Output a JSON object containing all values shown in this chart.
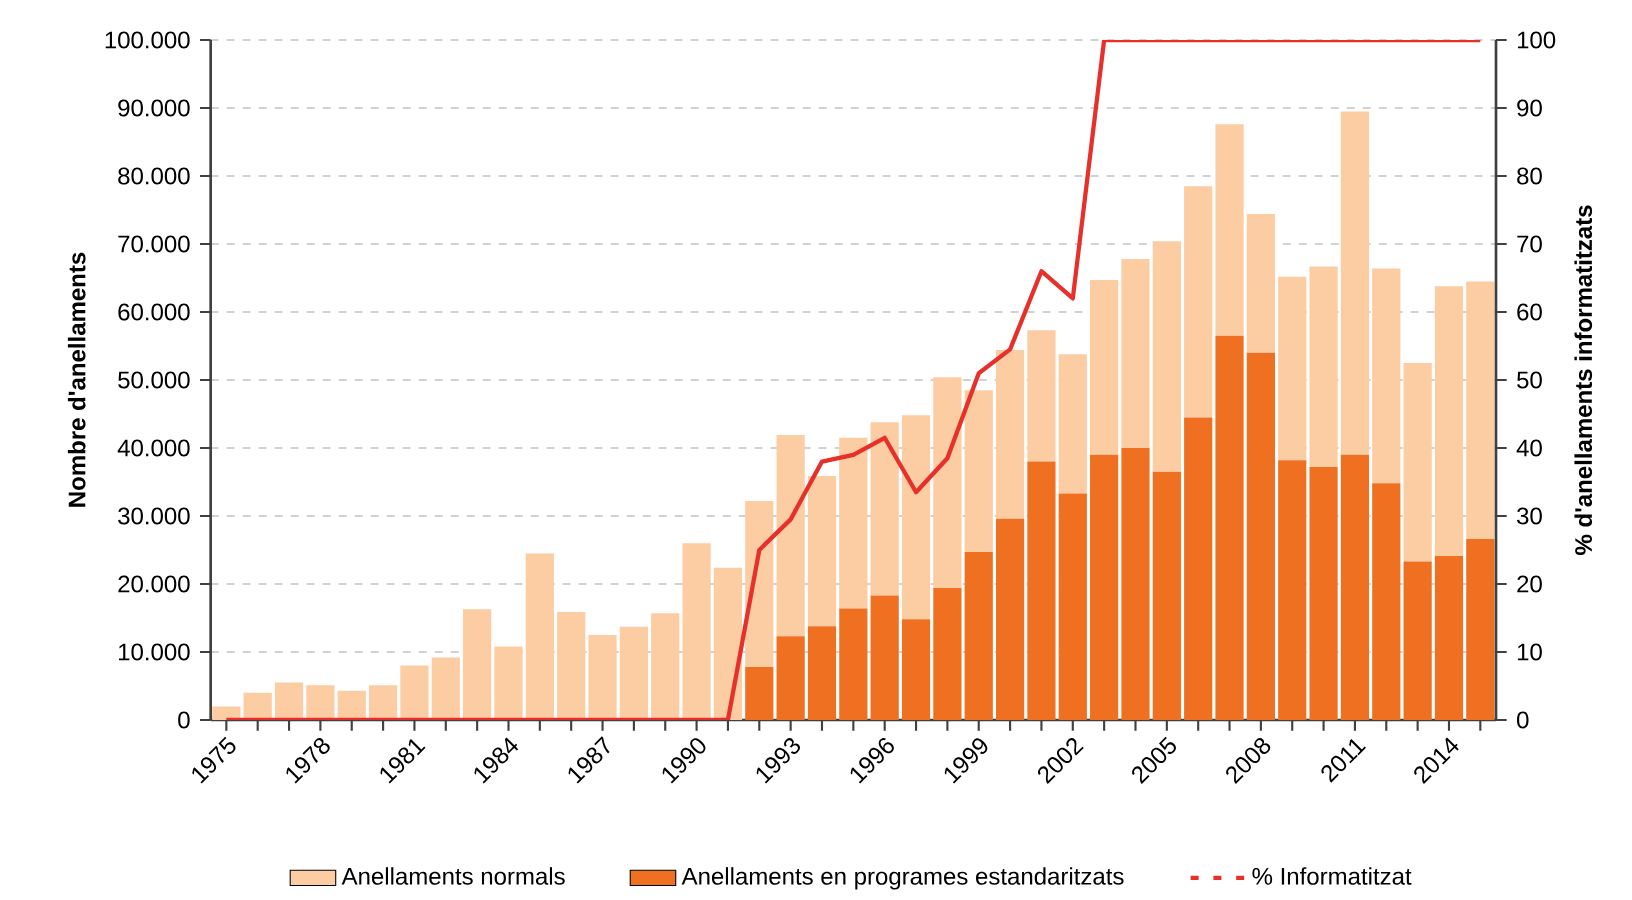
{
  "chart_data": {
    "type": "bar",
    "stacked": true,
    "ylabel": "Nombre d'anellaments",
    "y2label": "% d'anellaments informatitzats",
    "grid": "y",
    "legend": "bottom",
    "categories": [
      "1975",
      null,
      null,
      "1978",
      null,
      null,
      "1981",
      null,
      null,
      "1984",
      null,
      null,
      "1987",
      null,
      null,
      "1990",
      null,
      null,
      "1993",
      null,
      null,
      "1996",
      null,
      null,
      "1999",
      null,
      null,
      "2002",
      null,
      null,
      "2005",
      null,
      null,
      "2008",
      null,
      null,
      "2011",
      null,
      null,
      "2014",
      null
    ],
    "ylim": [
      0,
      100000
    ],
    "yticks": [
      {
        "value": 0,
        "label": "0"
      },
      {
        "value": 10000,
        "label": "10.000"
      },
      {
        "value": 20000,
        "label": "20.000"
      },
      {
        "value": 30000,
        "label": "30.000"
      },
      {
        "value": 40000,
        "label": "40.000"
      },
      {
        "value": 50000,
        "label": "50.000"
      },
      {
        "value": 60000,
        "label": "60.000"
      },
      {
        "value": 70000,
        "label": "70.000"
      },
      {
        "value": 80000,
        "label": "80.000"
      },
      {
        "value": 90000,
        "label": "90.000"
      },
      {
        "value": 100000,
        "label": "100.000"
      }
    ],
    "y2lim": [
      0,
      100
    ],
    "y2ticks": [
      0,
      10,
      20,
      30,
      40,
      50,
      60,
      70,
      80,
      90,
      100
    ],
    "series": [
      {
        "name": "Anellaments en programes estandaritzats",
        "color": "#f07022",
        "values": [
          0,
          0,
          0,
          0,
          0,
          0,
          0,
          0,
          0,
          0,
          0,
          0,
          0,
          0,
          0,
          0,
          0,
          7800,
          12300,
          13800,
          16400,
          18300,
          14800,
          19400,
          24700,
          29600,
          38000,
          33300,
          39000,
          40000,
          36500,
          44500,
          56500,
          54000,
          38200,
          37200,
          39000,
          34800,
          23300,
          24100,
          26600
        ]
      },
      {
        "name": "Anellaments normals",
        "color": "#fccca2",
        "values": [
          2000,
          4000,
          5500,
          5100,
          4300,
          5100,
          8000,
          9200,
          16300,
          10800,
          24500,
          15900,
          12500,
          13700,
          15700,
          26000,
          22400,
          24400,
          29600,
          22100,
          25100,
          25500,
          30000,
          31000,
          23800,
          24800,
          19300,
          20500,
          25700,
          27800,
          33900,
          34000,
          31100,
          20400,
          27000,
          29500,
          50500,
          31600,
          29200,
          39700,
          37900
        ]
      },
      {
        "name": "% Informatitzat",
        "type": "line",
        "axis": "y2",
        "color": "#e8302a",
        "values": [
          0,
          0,
          0,
          0,
          0,
          0,
          0,
          0,
          0,
          0,
          0,
          0,
          0,
          0,
          0,
          0,
          0,
          25,
          29.5,
          38,
          39,
          41.5,
          33.5,
          38.5,
          51,
          54.5,
          66,
          62,
          100,
          100,
          100,
          100,
          100,
          100,
          100,
          100,
          100,
          100,
          100,
          100,
          100
        ]
      }
    ]
  }
}
